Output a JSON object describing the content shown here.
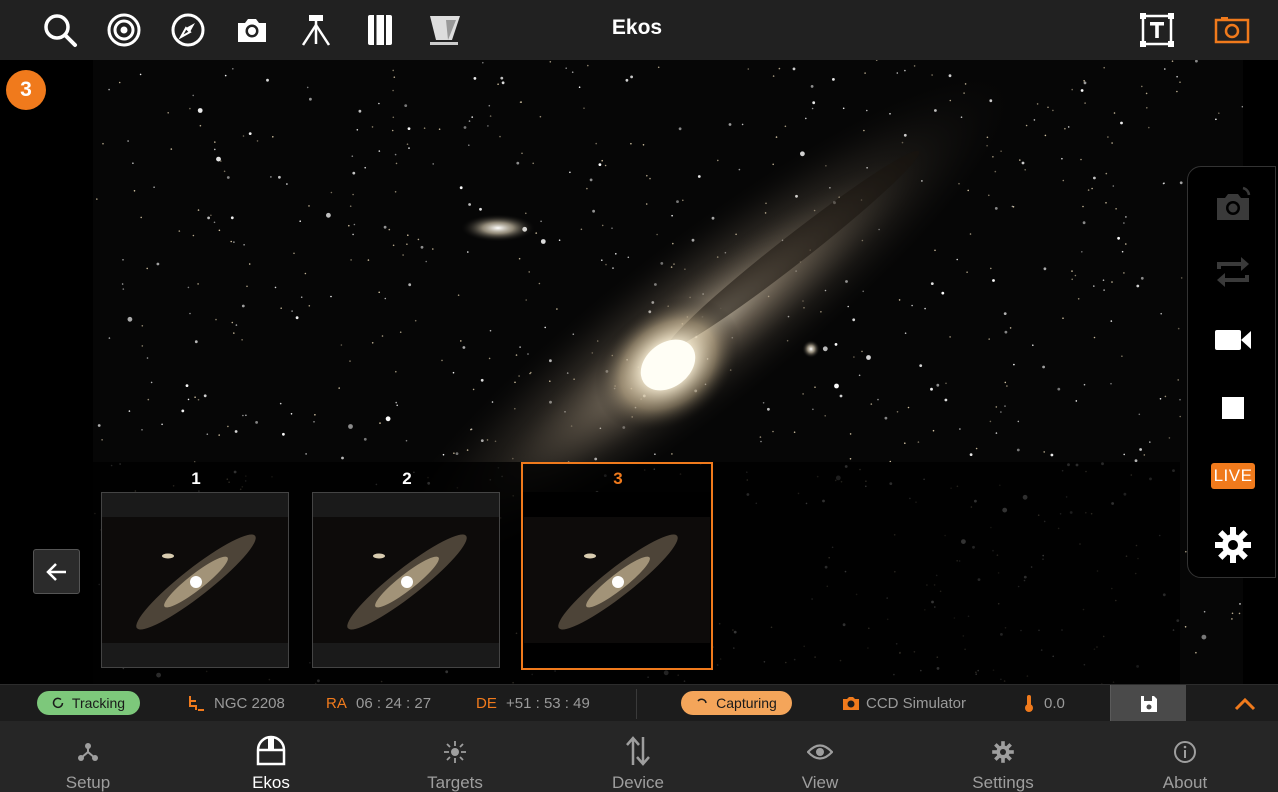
{
  "app": {
    "title": "Ekos"
  },
  "toolbar": {
    "left_icons": [
      "search-icon",
      "target-icon",
      "compass-icon",
      "camera-icon",
      "tripod-icon",
      "notebook-icon",
      "telescope-icon"
    ],
    "right_icons": [
      "text-overlay-icon",
      "fov-camera-icon"
    ],
    "accent_color": "#f07a1c"
  },
  "capture_badge": {
    "count": "3"
  },
  "tools": {
    "icons": [
      "rotate-camera-icon",
      "repeat-icon",
      "video-icon",
      "stop-icon",
      "live-icon",
      "settings-icon"
    ],
    "live_label": "LIVE"
  },
  "filmstrip": {
    "thumbnails": [
      {
        "label": "1"
      },
      {
        "label": "2"
      },
      {
        "label": "3"
      }
    ],
    "selected_index": 2
  },
  "status": {
    "tracking": "Tracking",
    "target": "NGC 2208",
    "ra_label": "RA",
    "ra_value": "06 : 24 : 27",
    "de_label": "DE",
    "de_value": "+51 : 53 : 49",
    "capturing": "Capturing",
    "camera": "CCD Simulator",
    "temperature": "0.0",
    "tracking_color": "#7dc87b",
    "capturing_color": "#f4a55a"
  },
  "nav": {
    "items": [
      {
        "label": "Setup",
        "icon": "setup-icon"
      },
      {
        "label": "Ekos",
        "icon": "dome-icon"
      },
      {
        "label": "Targets",
        "icon": "targets-icon"
      },
      {
        "label": "Device",
        "icon": "device-icon"
      },
      {
        "label": "View",
        "icon": "eye-icon"
      },
      {
        "label": "Settings",
        "icon": "gear-icon"
      },
      {
        "label": "About",
        "icon": "info-icon"
      }
    ],
    "active": "Ekos"
  }
}
